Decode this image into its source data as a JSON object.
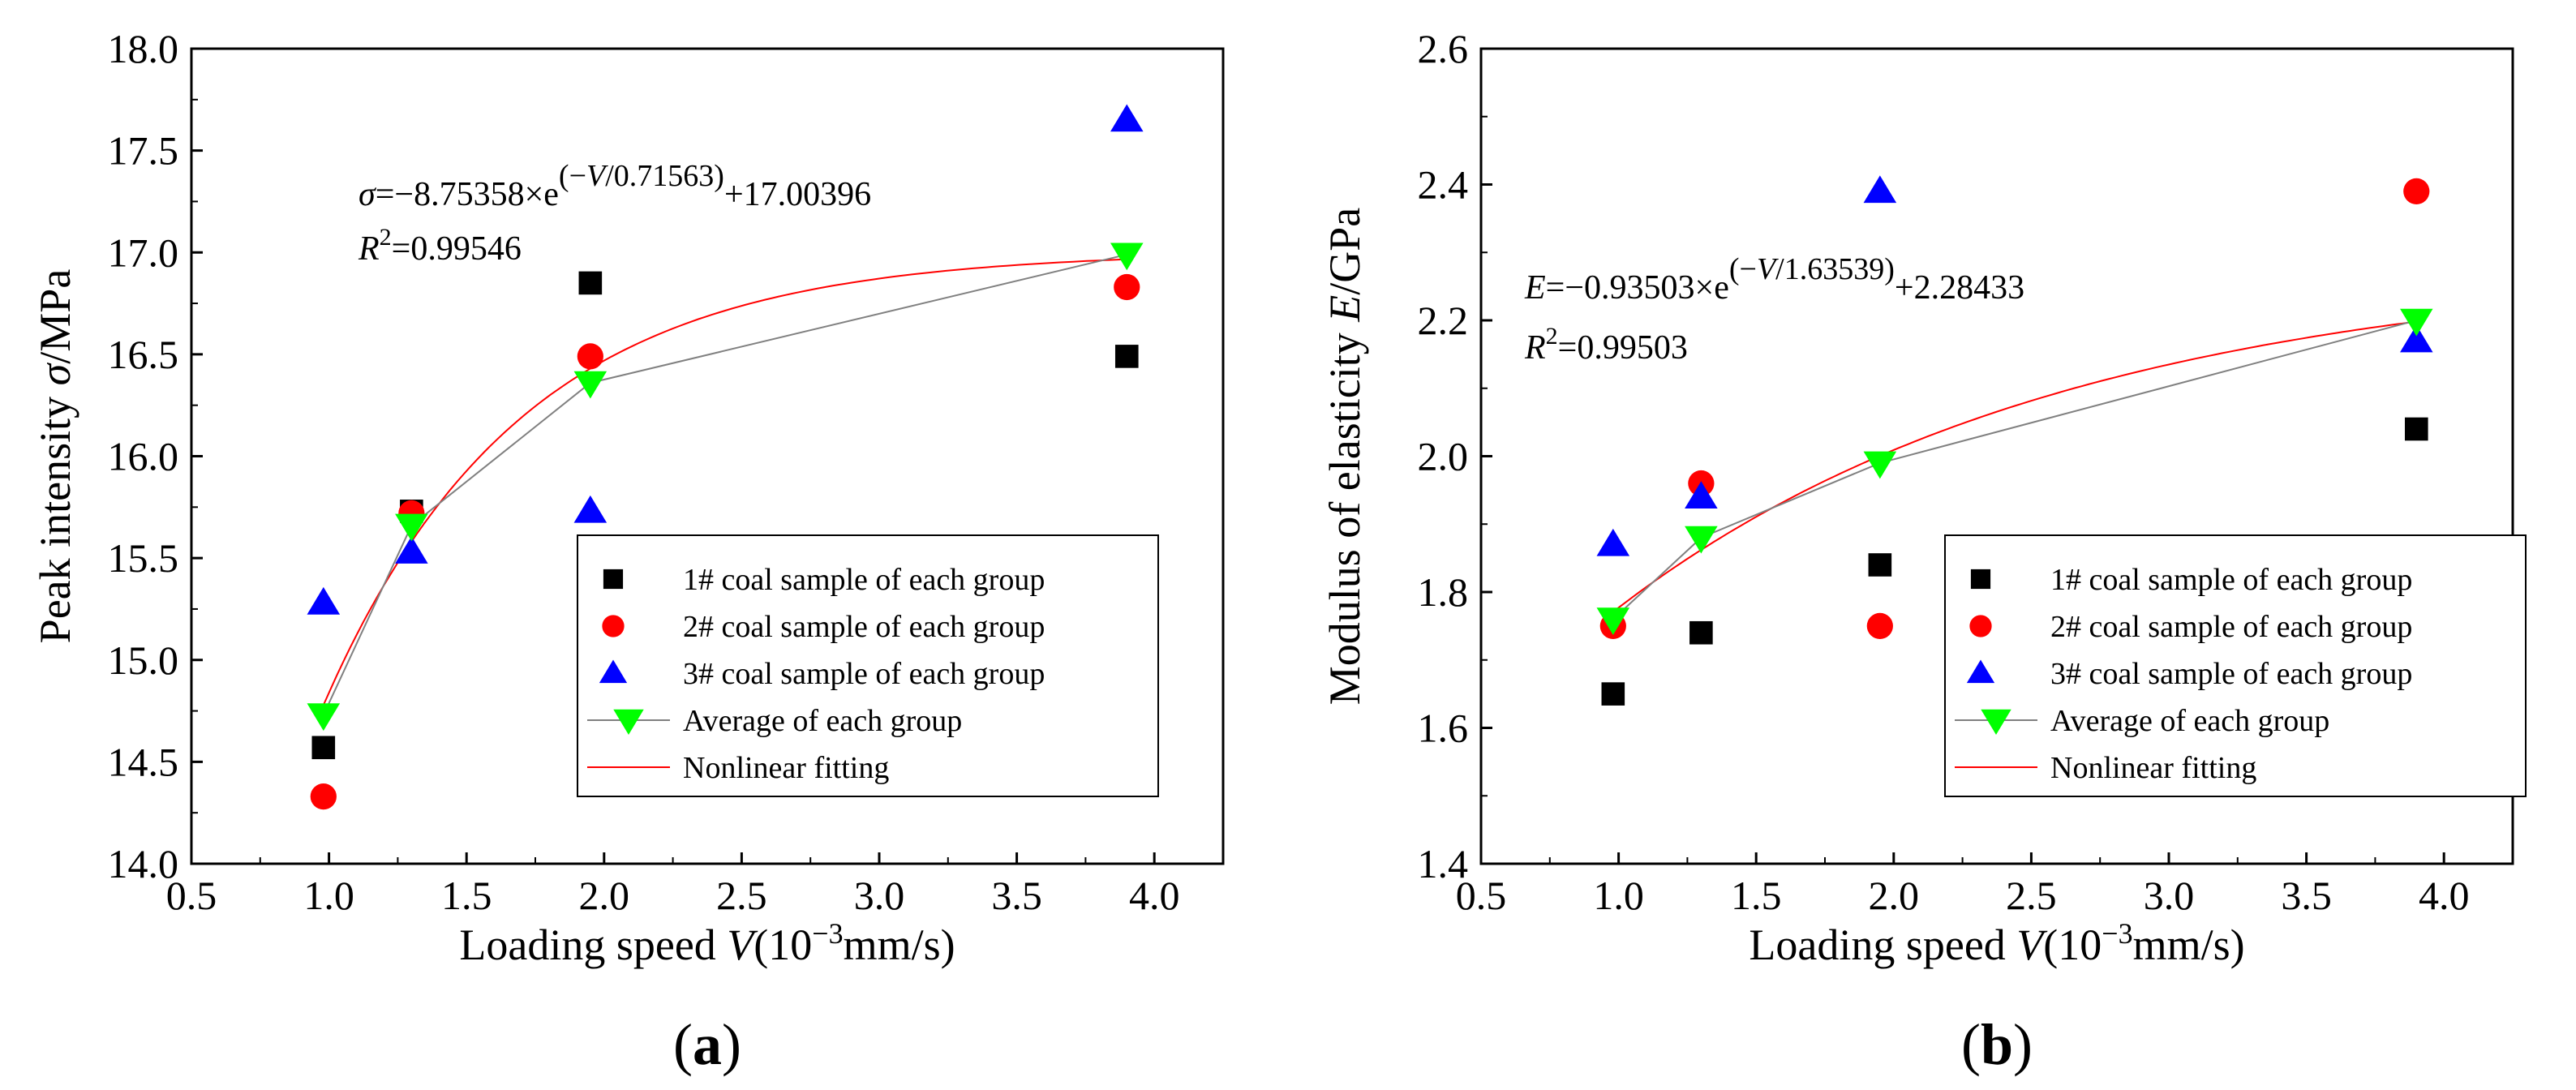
{
  "chart_data": [
    {
      "type": "scatter",
      "panel_label_parts": [
        "(",
        "a",
        ")"
      ],
      "xlabel_parts": [
        "Loading speed ",
        "V",
        "(10",
        "−3",
        "mm/s)"
      ],
      "ylabel_parts": [
        "Peak intensity ",
        "σ",
        "/MPa"
      ],
      "xlim": [
        0.5,
        4.25
      ],
      "ylim": [
        14.0,
        18.0
      ],
      "xticks": [
        "0.5",
        "1.0",
        "1.5",
        "2.0",
        "2.5",
        "3.0",
        "3.5",
        "4.0"
      ],
      "yticks": [
        "14.0",
        "14.5",
        "15.0",
        "15.5",
        "16.0",
        "16.5",
        "17.0",
        "17.5",
        "18.0"
      ],
      "equation_parts": {
        "lhs": "σ",
        "mid": "=−8.75358×e",
        "exp_a": "(−",
        "exp_v": "V",
        "exp_b": "/0.71563)",
        "tail": "+17.00396"
      },
      "r2_parts": {
        "r": "R",
        "sup": "2",
        "value": "=0.99546"
      },
      "fit": {
        "a": -8.75358,
        "t": 0.71563,
        "c": 17.00396
      },
      "x": [
        0.98,
        1.3,
        1.95,
        3.9
      ],
      "series": [
        {
          "name": "1# coal sample of each group",
          "marker": "square",
          "color": "#000000",
          "values": [
            14.57,
            15.73,
            16.85,
            16.49
          ]
        },
        {
          "name": "2# coal sample of each group",
          "marker": "circle",
          "color": "#ff0000",
          "values": [
            14.33,
            15.72,
            16.49,
            16.83
          ]
        },
        {
          "name": "3# coal sample of each group",
          "marker": "triangle-up",
          "color": "#0000ff",
          "values": [
            15.28,
            15.53,
            15.73,
            17.65
          ]
        },
        {
          "name": "Average of each group",
          "marker": "triangle-down",
          "color": "#00ff00",
          "line_color": "#808080",
          "values": [
            14.73,
            15.66,
            16.36,
            16.99
          ]
        },
        {
          "name": "Nonlinear fitting",
          "marker": "none",
          "color": "#ff0000"
        }
      ]
    },
    {
      "type": "scatter",
      "panel_label_parts": [
        "(",
        "b",
        ")"
      ],
      "xlabel_parts": [
        "Loading speed ",
        "V",
        "(10",
        "−3",
        "mm/s)"
      ],
      "ylabel_parts": [
        "Modulus of elasticity ",
        "E",
        "/GPa"
      ],
      "xlim": [
        0.5,
        4.25
      ],
      "ylim": [
        1.4,
        2.6
      ],
      "xticks": [
        "0.5",
        "1.0",
        "1.5",
        "2.0",
        "2.5",
        "3.0",
        "3.5",
        "4.0"
      ],
      "yticks": [
        "1.4",
        "1.6",
        "1.8",
        "2.0",
        "2.2",
        "2.4",
        "2.6"
      ],
      "equation_parts": {
        "lhs": "E",
        "mid": "=−0.93503×e",
        "exp_a": "(−",
        "exp_v": "V",
        "exp_b": "/1.63539)",
        "tail": "+2.28433"
      },
      "r2_parts": {
        "r": "R",
        "sup": "2",
        "value": "=0.99503"
      },
      "fit": {
        "a": -0.93503,
        "t": 1.63539,
        "c": 2.28433
      },
      "x": [
        0.98,
        1.3,
        1.95,
        3.9
      ],
      "series": [
        {
          "name": "1# coal sample of each group",
          "marker": "square",
          "color": "#000000",
          "values": [
            1.65,
            1.74,
            1.84,
            2.04
          ]
        },
        {
          "name": "2# coal sample of each group",
          "marker": "circle",
          "color": "#ff0000",
          "values": [
            1.75,
            1.96,
            1.75,
            2.39
          ]
        },
        {
          "name": "3# coal sample of each group",
          "marker": "triangle-up",
          "color": "#0000ff",
          "values": [
            1.87,
            1.94,
            2.39,
            2.17
          ]
        },
        {
          "name": "Average of each group",
          "marker": "triangle-down",
          "color": "#00ff00",
          "line_color": "#808080",
          "values": [
            1.76,
            1.88,
            1.99,
            2.2
          ]
        },
        {
          "name": "Nonlinear fitting",
          "marker": "none",
          "color": "#ff0000"
        }
      ]
    }
  ]
}
